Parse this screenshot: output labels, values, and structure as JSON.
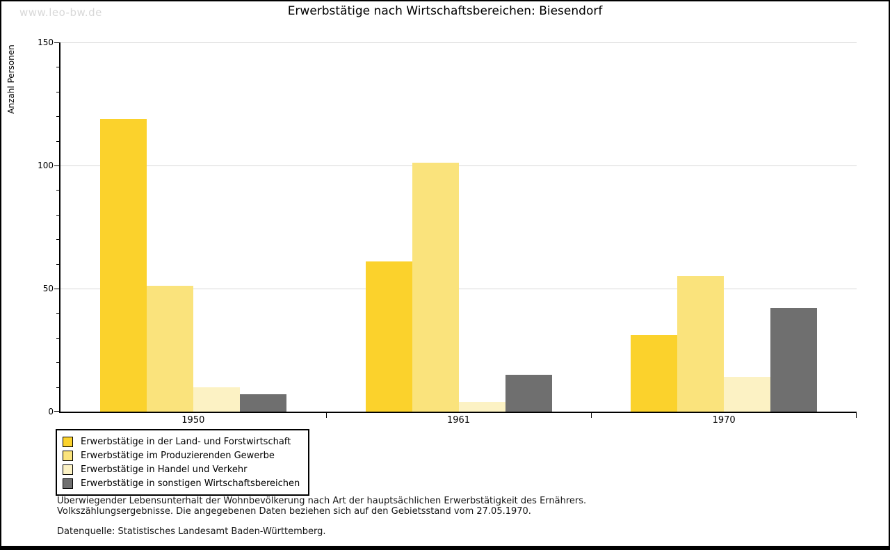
{
  "watermark": "www.leo-bw.de",
  "chart_data": {
    "type": "bar",
    "title": "Erwerbstätige nach Wirtschaftsbereichen: Biesendorf",
    "ylabel": "Anzahl Personen",
    "xlabel": "",
    "categories": [
      "1950",
      "1961",
      "1970"
    ],
    "series": [
      {
        "name": "Erwerbstätige in der Land- und Forstwirtschaft",
        "color": "#FBD22C",
        "values": [
          119,
          61,
          31
        ]
      },
      {
        "name": "Erwerbstätige im Produzierenden Gewerbe",
        "color": "#FAE37C",
        "values": [
          51,
          101,
          55
        ]
      },
      {
        "name": "Erwerbstätige in Handel und Verkehr",
        "color": "#FCF2C4",
        "values": [
          10,
          4,
          14
        ]
      },
      {
        "name": "Erwerbstätige in sonstigen Wirtschaftsbereichen",
        "color": "#6F6F6F",
        "values": [
          7,
          15,
          42
        ]
      }
    ],
    "ylim": [
      0,
      150
    ],
    "yticks": [
      0,
      50,
      100,
      150
    ],
    "minor_tick_step": 10,
    "grid": true,
    "grid_color": "#d8d8d8",
    "axis_color": "#000000",
    "legend_position": "bottom-left"
  },
  "footnotes": {
    "line1": "Überwiegender Lebensunterhalt der Wohnbevölkerung nach Art der hauptsächlichen Erwerbstätigkeit des Ernährers.",
    "line2": "Volkszählungsergebnisse. Die angegebenen Daten beziehen sich auf den Gebietsstand vom 27.05.1970.",
    "source": "Datenquelle: Statistisches Landesamt Baden-Württemberg."
  }
}
